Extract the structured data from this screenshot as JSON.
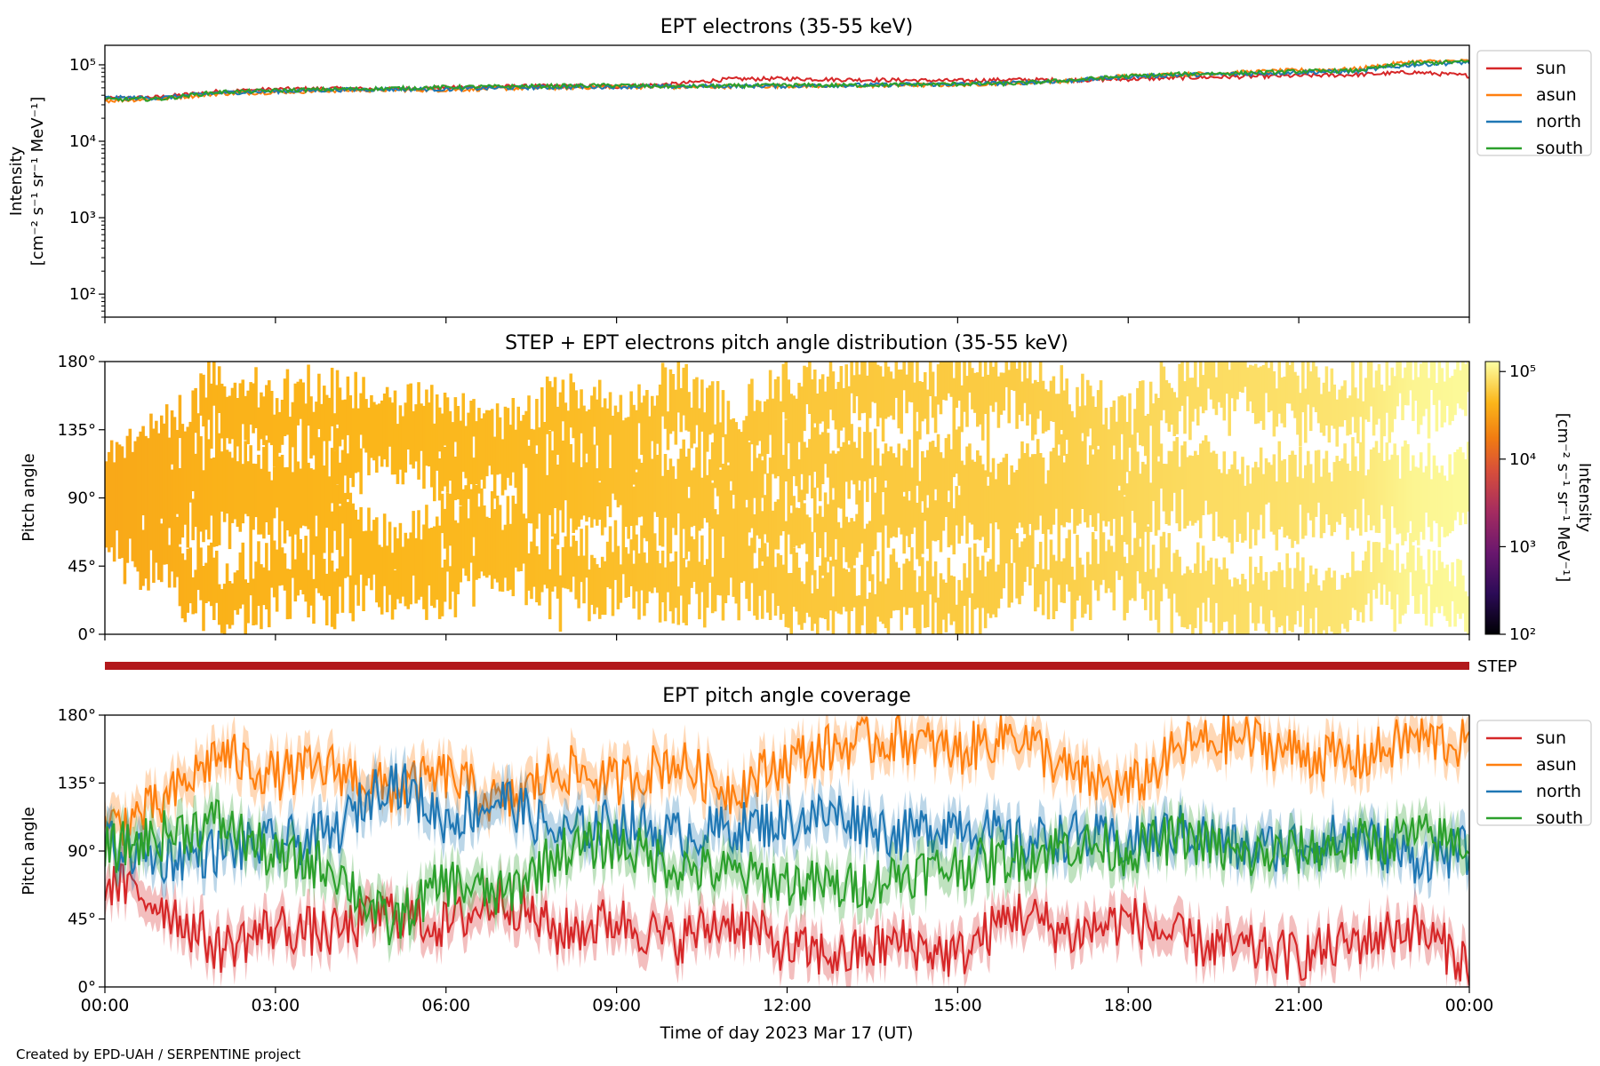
{
  "chart_data": [
    {
      "type": "line",
      "title": "EPT electrons (35-55 keV)",
      "ylabel": [
        "Intensity",
        "[cm⁻² s⁻¹ sr⁻¹ MeV⁻¹]"
      ],
      "yscale": "log",
      "ylim": [
        50,
        180000
      ],
      "yticks": [
        {
          "v": 100,
          "label": "10²"
        },
        {
          "v": 1000,
          "label": "10³"
        },
        {
          "v": 10000,
          "label": "10⁴"
        },
        {
          "v": 100000,
          "label": "10⁵"
        }
      ],
      "x_hours": [
        0,
        1,
        2,
        3,
        4,
        5,
        6,
        7,
        8,
        9,
        10,
        11,
        12,
        13,
        14,
        15,
        16,
        17,
        18,
        19,
        20,
        21,
        22,
        23,
        24
      ],
      "series": [
        {
          "name": "sun",
          "color": "#d62728",
          "values": [
            36000,
            38000,
            45000,
            48000,
            49000,
            48000,
            50000,
            52000,
            53000,
            52000,
            56000,
            65000,
            66000,
            64000,
            63000,
            62000,
            64000,
            63000,
            65000,
            68000,
            70000,
            72000,
            74000,
            80000,
            72000
          ]
        },
        {
          "name": "asun",
          "color": "#ff7f0e",
          "values": [
            34000,
            36000,
            42000,
            44000,
            46000,
            47000,
            47000,
            49000,
            50000,
            52000,
            51000,
            52000,
            53000,
            53000,
            54000,
            55000,
            58000,
            62000,
            72000,
            75000,
            80000,
            85000,
            88000,
            110000,
            112000
          ]
        },
        {
          "name": "north",
          "color": "#1f77b4",
          "values": [
            37000,
            37000,
            43000,
            45000,
            47000,
            48000,
            48000,
            50000,
            51000,
            52000,
            52000,
            53000,
            53000,
            54000,
            55000,
            56000,
            58000,
            62000,
            70000,
            74000,
            76000,
            80000,
            82000,
            100000,
            108000
          ]
        },
        {
          "name": "south",
          "color": "#2ca02c",
          "values": [
            35000,
            36000,
            44000,
            46000,
            48000,
            49000,
            51000,
            52000,
            53000,
            54000,
            52000,
            53000,
            54000,
            54000,
            55000,
            56000,
            57000,
            63000,
            71000,
            76000,
            78000,
            82000,
            84000,
            105000,
            110000
          ]
        }
      ],
      "legend": "outside-right-top"
    },
    {
      "type": "heatmap",
      "title": "STEP + EPT electrons pitch angle distribution (35-55 keV)",
      "ylabel": "Pitch angle",
      "ylim": [
        0,
        180
      ],
      "yticks": [
        "0°",
        "45°",
        "90°",
        "135°",
        "180°"
      ],
      "colorbar": {
        "label": [
          "Intensity",
          "[cm⁻² s⁻¹ sr⁻¹ MeV⁻¹]"
        ],
        "scale": "log",
        "range": [
          100,
          130000
        ],
        "ticks": [
          "10²",
          "10³",
          "10⁴",
          "10⁵"
        ],
        "colormap": "inferno"
      },
      "x_hours": [
        0,
        1,
        2,
        3,
        4,
        5,
        6,
        7,
        8,
        9,
        10,
        11,
        12,
        13,
        14,
        15,
        16,
        17,
        18,
        19,
        20,
        21,
        22,
        23,
        24
      ],
      "level_log10": [
        4.55,
        4.58,
        4.62,
        4.63,
        4.64,
        4.65,
        4.66,
        4.67,
        4.68,
        4.7,
        4.72,
        4.73,
        4.75,
        4.76,
        4.77,
        4.78,
        4.79,
        4.81,
        4.85,
        4.88,
        4.9,
        4.92,
        4.95,
        5.05,
        5.08
      ]
    },
    {
      "type": "line",
      "title": "EPT pitch angle coverage",
      "ylabel": "Pitch angle",
      "xlabel": "Time of day 2023 Mar 17 (UT)",
      "ylim": [
        0,
        180
      ],
      "yticks": [
        "0°",
        "45°",
        "90°",
        "135°",
        "180°"
      ],
      "xticks": [
        "00:00",
        "03:00",
        "06:00",
        "09:00",
        "12:00",
        "15:00",
        "18:00",
        "21:00",
        "00:00"
      ],
      "step_bar_label": "STEP",
      "step_bar_color": "#b2181b",
      "x_hours": [
        0,
        1,
        2,
        3,
        4,
        5,
        6,
        7,
        8,
        9,
        10,
        11,
        12,
        13,
        14,
        15,
        16,
        17,
        18,
        19,
        20,
        21,
        22,
        23,
        24
      ],
      "series": [
        {
          "name": "sun",
          "color": "#d62728",
          "values": [
            70,
            55,
            25,
            40,
            35,
            50,
            40,
            60,
            35,
            45,
            30,
            45,
            25,
            20,
            30,
            20,
            50,
            35,
            45,
            30,
            25,
            20,
            30,
            40,
            15
          ]
        },
        {
          "name": "asun",
          "color": "#ff7f0e",
          "values": [
            105,
            120,
            155,
            140,
            145,
            130,
            140,
            120,
            145,
            135,
            150,
            130,
            150,
            160,
            165,
            155,
            170,
            140,
            130,
            160,
            165,
            155,
            150,
            165,
            160
          ]
        },
        {
          "name": "north",
          "color": "#1f77b4",
          "values": [
            95,
            85,
            90,
            95,
            100,
            140,
            110,
            125,
            100,
            110,
            100,
            105,
            110,
            115,
            100,
            110,
            95,
            100,
            95,
            105,
            90,
            95,
            100,
            85,
            90
          ]
        },
        {
          "name": "south",
          "color": "#2ca02c",
          "values": [
            90,
            100,
            110,
            85,
            80,
            40,
            70,
            60,
            90,
            95,
            80,
            75,
            70,
            65,
            75,
            80,
            85,
            95,
            90,
            100,
            85,
            90,
            95,
            100,
            95
          ]
        }
      ],
      "band_halfwidth_deg": 12,
      "legend": "outside-right-top"
    }
  ],
  "footer": {
    "credit": "Created by EPD-UAH / SERPENTINE project"
  }
}
